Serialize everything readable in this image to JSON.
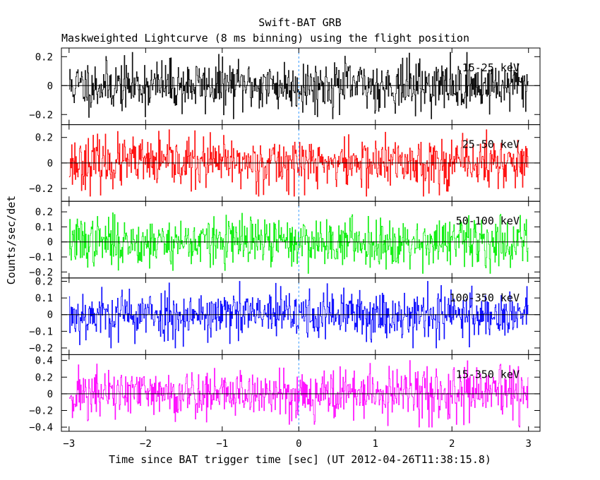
{
  "chart_data": {
    "type": "line",
    "title": "Swift-BAT GRB",
    "subtitle": "Maskweighted Lightcurve (8 ms binning) using the flight position",
    "xlabel": "Time since BAT trigger time [sec] (UT 2012-04-26T11:38:15.8)",
    "ylabel": "Counts/sec/det",
    "xlim": [
      -3.1,
      3.15
    ],
    "x_ticks": [
      -3,
      -2,
      -1,
      0,
      1,
      2,
      3
    ],
    "bin_width_sec": 0.008,
    "trigger_marker_x": 0,
    "grid": false,
    "series": [
      {
        "name": "15-25 keV",
        "color": "#000000",
        "ylim": [
          -0.27,
          0.26
        ],
        "y_ticks": [
          -0.2,
          0,
          0.2
        ],
        "y_tick_labels": [
          "−0.2",
          "0",
          "0.2"
        ],
        "amplitude": 0.23,
        "seed": 11
      },
      {
        "name": "25-50 keV",
        "color": "#ff0000",
        "ylim": [
          -0.3,
          0.3
        ],
        "y_ticks": [
          -0.2,
          0,
          0.2
        ],
        "y_tick_labels": [
          "−0.2",
          "0",
          "0.2"
        ],
        "amplitude": 0.26,
        "seed": 23
      },
      {
        "name": "50-100 keV",
        "color": "#00ee00",
        "ylim": [
          -0.24,
          0.27
        ],
        "y_ticks": [
          -0.2,
          -0.1,
          0,
          0.1,
          0.2
        ],
        "y_tick_labels": [
          "−0.2",
          "−0.1",
          "0",
          "0.1",
          "0.2"
        ],
        "amplitude": 0.21,
        "seed": 37
      },
      {
        "name": "100-350 keV",
        "color": "#0000ff",
        "ylim": [
          -0.24,
          0.22
        ],
        "y_ticks": [
          -0.2,
          -0.1,
          0,
          0.1,
          0.2
        ],
        "y_tick_labels": [
          "−0.2",
          "−0.1",
          "0",
          "0.1",
          "0.2"
        ],
        "amplitude": 0.2,
        "seed": 53
      },
      {
        "name": "15-350 keV",
        "color": "#ff00ff",
        "ylim": [
          -0.45,
          0.47
        ],
        "y_ticks": [
          -0.4,
          -0.2,
          0,
          0.2,
          0.4
        ],
        "y_tick_labels": [
          "−0.4",
          "−0.2",
          "0",
          "0.2",
          "0.4"
        ],
        "amplitude": 0.4,
        "seed": 71
      }
    ],
    "x_tick_labels": [
      "−3",
      "−2",
      "−1",
      "0",
      "1",
      "2",
      "3"
    ]
  }
}
